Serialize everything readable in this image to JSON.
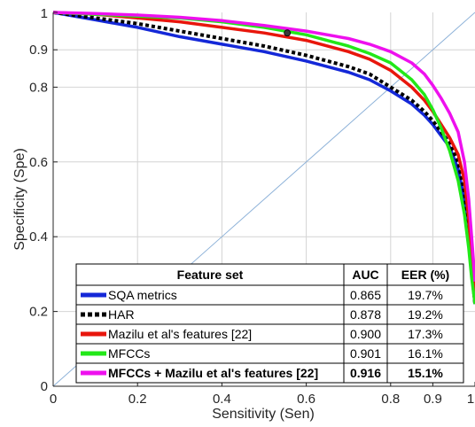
{
  "chart_data": {
    "type": "line",
    "title": "",
    "xlabel": "Sensitivity (Sen)",
    "ylabel": "Specificity (Spe)",
    "xlim": [
      0,
      1
    ],
    "ylim": [
      0,
      1
    ],
    "grid": true,
    "x_ticks": [
      {
        "value": 0,
        "label": "0"
      },
      {
        "value": 0.2,
        "label": "0.2"
      },
      {
        "value": 0.4,
        "label": "0.4"
      },
      {
        "value": 0.6,
        "label": "0.6"
      },
      {
        "value": 0.8,
        "label": "0.8"
      },
      {
        "value": 0.9,
        "label": "0.9"
      },
      {
        "value": 1,
        "label": "1"
      }
    ],
    "y_ticks": [
      {
        "value": 0,
        "label": "0"
      },
      {
        "value": 0.2,
        "label": "0.2"
      },
      {
        "value": 0.4,
        "label": "0.4"
      },
      {
        "value": 0.6,
        "label": "0.6"
      },
      {
        "value": 0.8,
        "label": "0.8"
      },
      {
        "value": 0.9,
        "label": "0.9"
      },
      {
        "value": 1,
        "label": "1"
      }
    ],
    "reference_line": {
      "x": [
        0,
        1
      ],
      "y": [
        0,
        1
      ],
      "color": "#8fb3d9"
    },
    "marker_point": {
      "x": 0.555,
      "y": 0.945
    },
    "series": [
      {
        "name": "SQA metrics",
        "color": "#1428d8",
        "dash": "solid",
        "x": [
          0,
          0.1,
          0.2,
          0.3,
          0.4,
          0.5,
          0.6,
          0.7,
          0.75,
          0.8,
          0.85,
          0.88,
          0.9,
          0.92,
          0.94,
          0.96,
          0.975,
          0.985,
          0.992,
          1
        ],
        "y": [
          1,
          0.98,
          0.96,
          0.935,
          0.915,
          0.895,
          0.87,
          0.84,
          0.82,
          0.79,
          0.755,
          0.725,
          0.7,
          0.67,
          0.64,
          0.58,
          0.5,
          0.4,
          0.3,
          0.22
        ]
      },
      {
        "name": "HAR",
        "color": "#000000",
        "dash": "dotted",
        "x": [
          0,
          0.1,
          0.2,
          0.3,
          0.4,
          0.5,
          0.6,
          0.7,
          0.75,
          0.8,
          0.85,
          0.88,
          0.9,
          0.92,
          0.94,
          0.96,
          0.975,
          0.985,
          0.992,
          1
        ],
        "y": [
          1,
          0.985,
          0.97,
          0.95,
          0.93,
          0.91,
          0.885,
          0.855,
          0.835,
          0.8,
          0.765,
          0.735,
          0.71,
          0.68,
          0.65,
          0.6,
          0.52,
          0.42,
          0.32,
          0.22
        ]
      },
      {
        "name": "Mazilu et al's features [22]",
        "color": "#e8160c",
        "dash": "solid",
        "x": [
          0,
          0.1,
          0.2,
          0.3,
          0.4,
          0.5,
          0.6,
          0.7,
          0.75,
          0.8,
          0.85,
          0.88,
          0.9,
          0.92,
          0.94,
          0.96,
          0.975,
          0.985,
          0.992,
          1
        ],
        "y": [
          1,
          0.995,
          0.985,
          0.975,
          0.96,
          0.945,
          0.925,
          0.895,
          0.875,
          0.845,
          0.8,
          0.765,
          0.735,
          0.7,
          0.665,
          0.62,
          0.55,
          0.45,
          0.34,
          0.24
        ]
      },
      {
        "name": "MFCCs",
        "color": "#22e818",
        "dash": "solid",
        "x": [
          0,
          0.1,
          0.2,
          0.3,
          0.4,
          0.5,
          0.6,
          0.7,
          0.75,
          0.8,
          0.85,
          0.88,
          0.9,
          0.92,
          0.94,
          0.96,
          0.975,
          0.985,
          0.992,
          1
        ],
        "y": [
          1,
          0.995,
          0.99,
          0.985,
          0.975,
          0.96,
          0.94,
          0.91,
          0.89,
          0.865,
          0.82,
          0.78,
          0.74,
          0.69,
          0.63,
          0.55,
          0.46,
          0.37,
          0.29,
          0.22
        ]
      },
      {
        "name": "MFCCs + Mazilu et al's features [22]",
        "color": "#ee10ee",
        "dash": "solid",
        "x": [
          0,
          0.1,
          0.2,
          0.3,
          0.4,
          0.5,
          0.6,
          0.7,
          0.75,
          0.8,
          0.85,
          0.88,
          0.9,
          0.92,
          0.94,
          0.96,
          0.975,
          0.985,
          0.992,
          1
        ],
        "y": [
          1,
          0.997,
          0.993,
          0.987,
          0.978,
          0.965,
          0.95,
          0.93,
          0.915,
          0.895,
          0.865,
          0.835,
          0.805,
          0.77,
          0.73,
          0.68,
          0.6,
          0.5,
          0.4,
          0.28
        ]
      }
    ],
    "legend": {
      "placement": "bottom-center",
      "header": {
        "feature": "Feature set",
        "auc": "AUC",
        "eer": "EER (%)"
      },
      "rows": [
        {
          "label": "SQA metrics",
          "auc": "0.865",
          "eer": "19.7%",
          "bold": false
        },
        {
          "label": "HAR",
          "auc": "0.878",
          "eer": "19.2%",
          "bold": false
        },
        {
          "label": "Mazilu et al's features [22]",
          "auc": "0.900",
          "eer": "17.3%",
          "bold": false
        },
        {
          "label": "MFCCs",
          "auc": "0.901",
          "eer": "16.1%",
          "bold": false
        },
        {
          "label": "MFCCs + Mazilu et al's features [22]",
          "auc": "0.916",
          "eer": "15.1%",
          "bold": true
        }
      ]
    }
  }
}
